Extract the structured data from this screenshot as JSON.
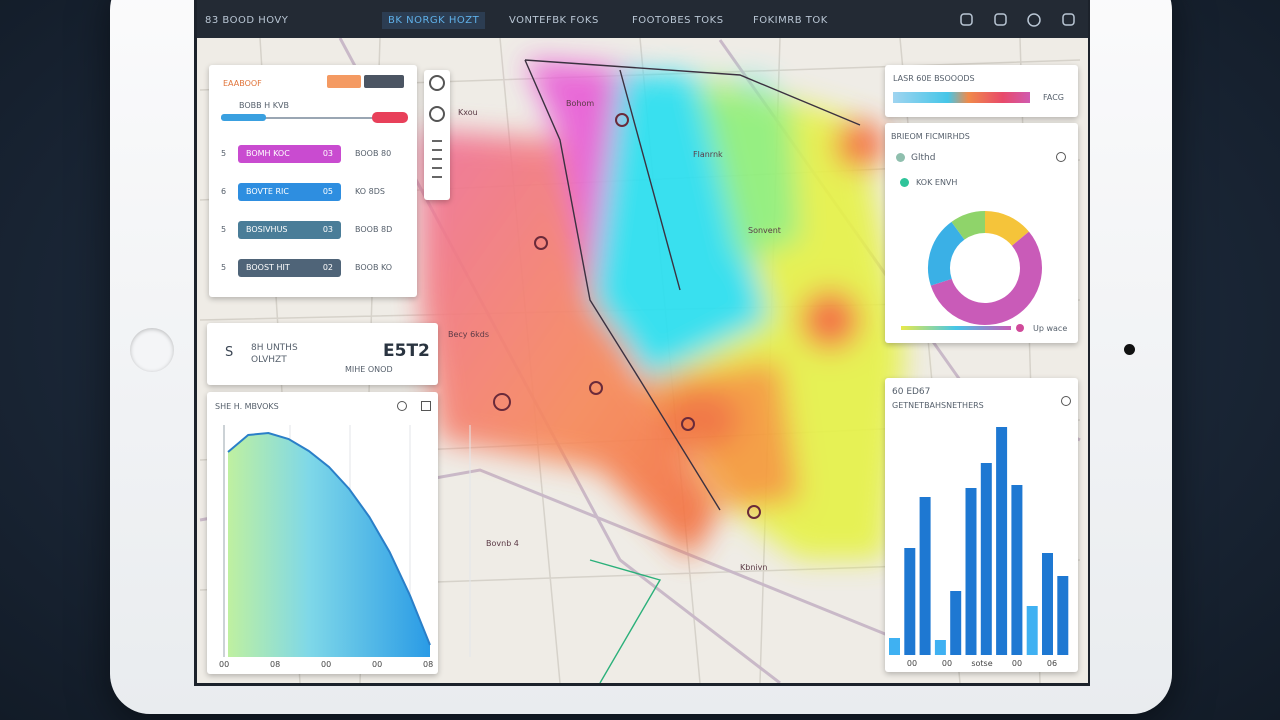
{
  "nav": {
    "brand": "83 BOOD HOVY",
    "tabs": [
      "BK NORGK HOZT",
      "VONTEFBK FOKS",
      "FOOTOBES TOKS",
      "FOKIMRB TOK"
    ]
  },
  "filter_panel": {
    "title": "EAABOOF",
    "slider_label": "BOBB H KVB",
    "rows": [
      {
        "index": "5",
        "label": "BOMH KOC",
        "count": "03",
        "note": "BOOB 80"
      },
      {
        "index": "6",
        "label": "BOVTE RIC",
        "count": "05",
        "note": "KO 8DS"
      },
      {
        "index": "5",
        "label": "BOSIVHUS",
        "count": "03",
        "note": "BOOB 8D"
      },
      {
        "index": "5",
        "label": "BOOST HIT",
        "count": "02",
        "note": "BOOB KO"
      }
    ]
  },
  "stat_card": {
    "icon_label": "S",
    "title": "8H UNTHS",
    "subtitle": "OLVHZT",
    "value": "E5T2",
    "caption": "MIHE ONOD"
  },
  "area_panel": {
    "title": "SHE H. MBVOKS",
    "x_labels": [
      "00",
      "08",
      "00",
      "00",
      "08"
    ],
    "values": [
      205,
      222,
      224,
      218,
      206,
      190,
      168,
      140,
      105,
      62,
      12
    ]
  },
  "map": {
    "labels": [
      "Bohom",
      "Kxou",
      "Becy 6kds",
      "Flanrnk",
      "Sonvent",
      "Bovnb 4",
      "Kbnivn"
    ]
  },
  "legend_panel": {
    "title": "LASR 60E BSOOODS",
    "label": "FACG"
  },
  "donut_panel": {
    "title": "BRIEOM FICMIRHDS",
    "items": [
      "Glthd",
      "KOK ENVH"
    ],
    "footer": "Up wace",
    "segments": [
      {
        "value": 14,
        "color": "#f5c43a"
      },
      {
        "value": 56,
        "color": "#c95bb8"
      },
      {
        "value": 20,
        "color": "#3ab0e6"
      },
      {
        "value": 10,
        "color": "#8fd46a"
      }
    ]
  },
  "bar_panel": {
    "title": "60 ED67",
    "subtitle": "GETNETBAHSNETHERS",
    "x_labels": [
      "00",
      "00",
      "sotse",
      "00",
      "06"
    ],
    "bars": [
      {
        "value": 17,
        "color": "#3fb1f2"
      },
      {
        "value": 107,
        "color": "#1e78d2"
      },
      {
        "value": 158,
        "color": "#1e78d2"
      },
      {
        "value": 15,
        "color": "#3fb1f2"
      },
      {
        "value": 64,
        "color": "#1e78d2"
      },
      {
        "value": 167,
        "color": "#1e78d2"
      },
      {
        "value": 192,
        "color": "#1e78d2"
      },
      {
        "value": 228,
        "color": "#1e78d2"
      },
      {
        "value": 170,
        "color": "#1e78d2"
      },
      {
        "value": 49,
        "color": "#3fb1f2"
      },
      {
        "value": 102,
        "color": "#1e78d2"
      },
      {
        "value": 79,
        "color": "#1e78d2"
      }
    ]
  }
}
